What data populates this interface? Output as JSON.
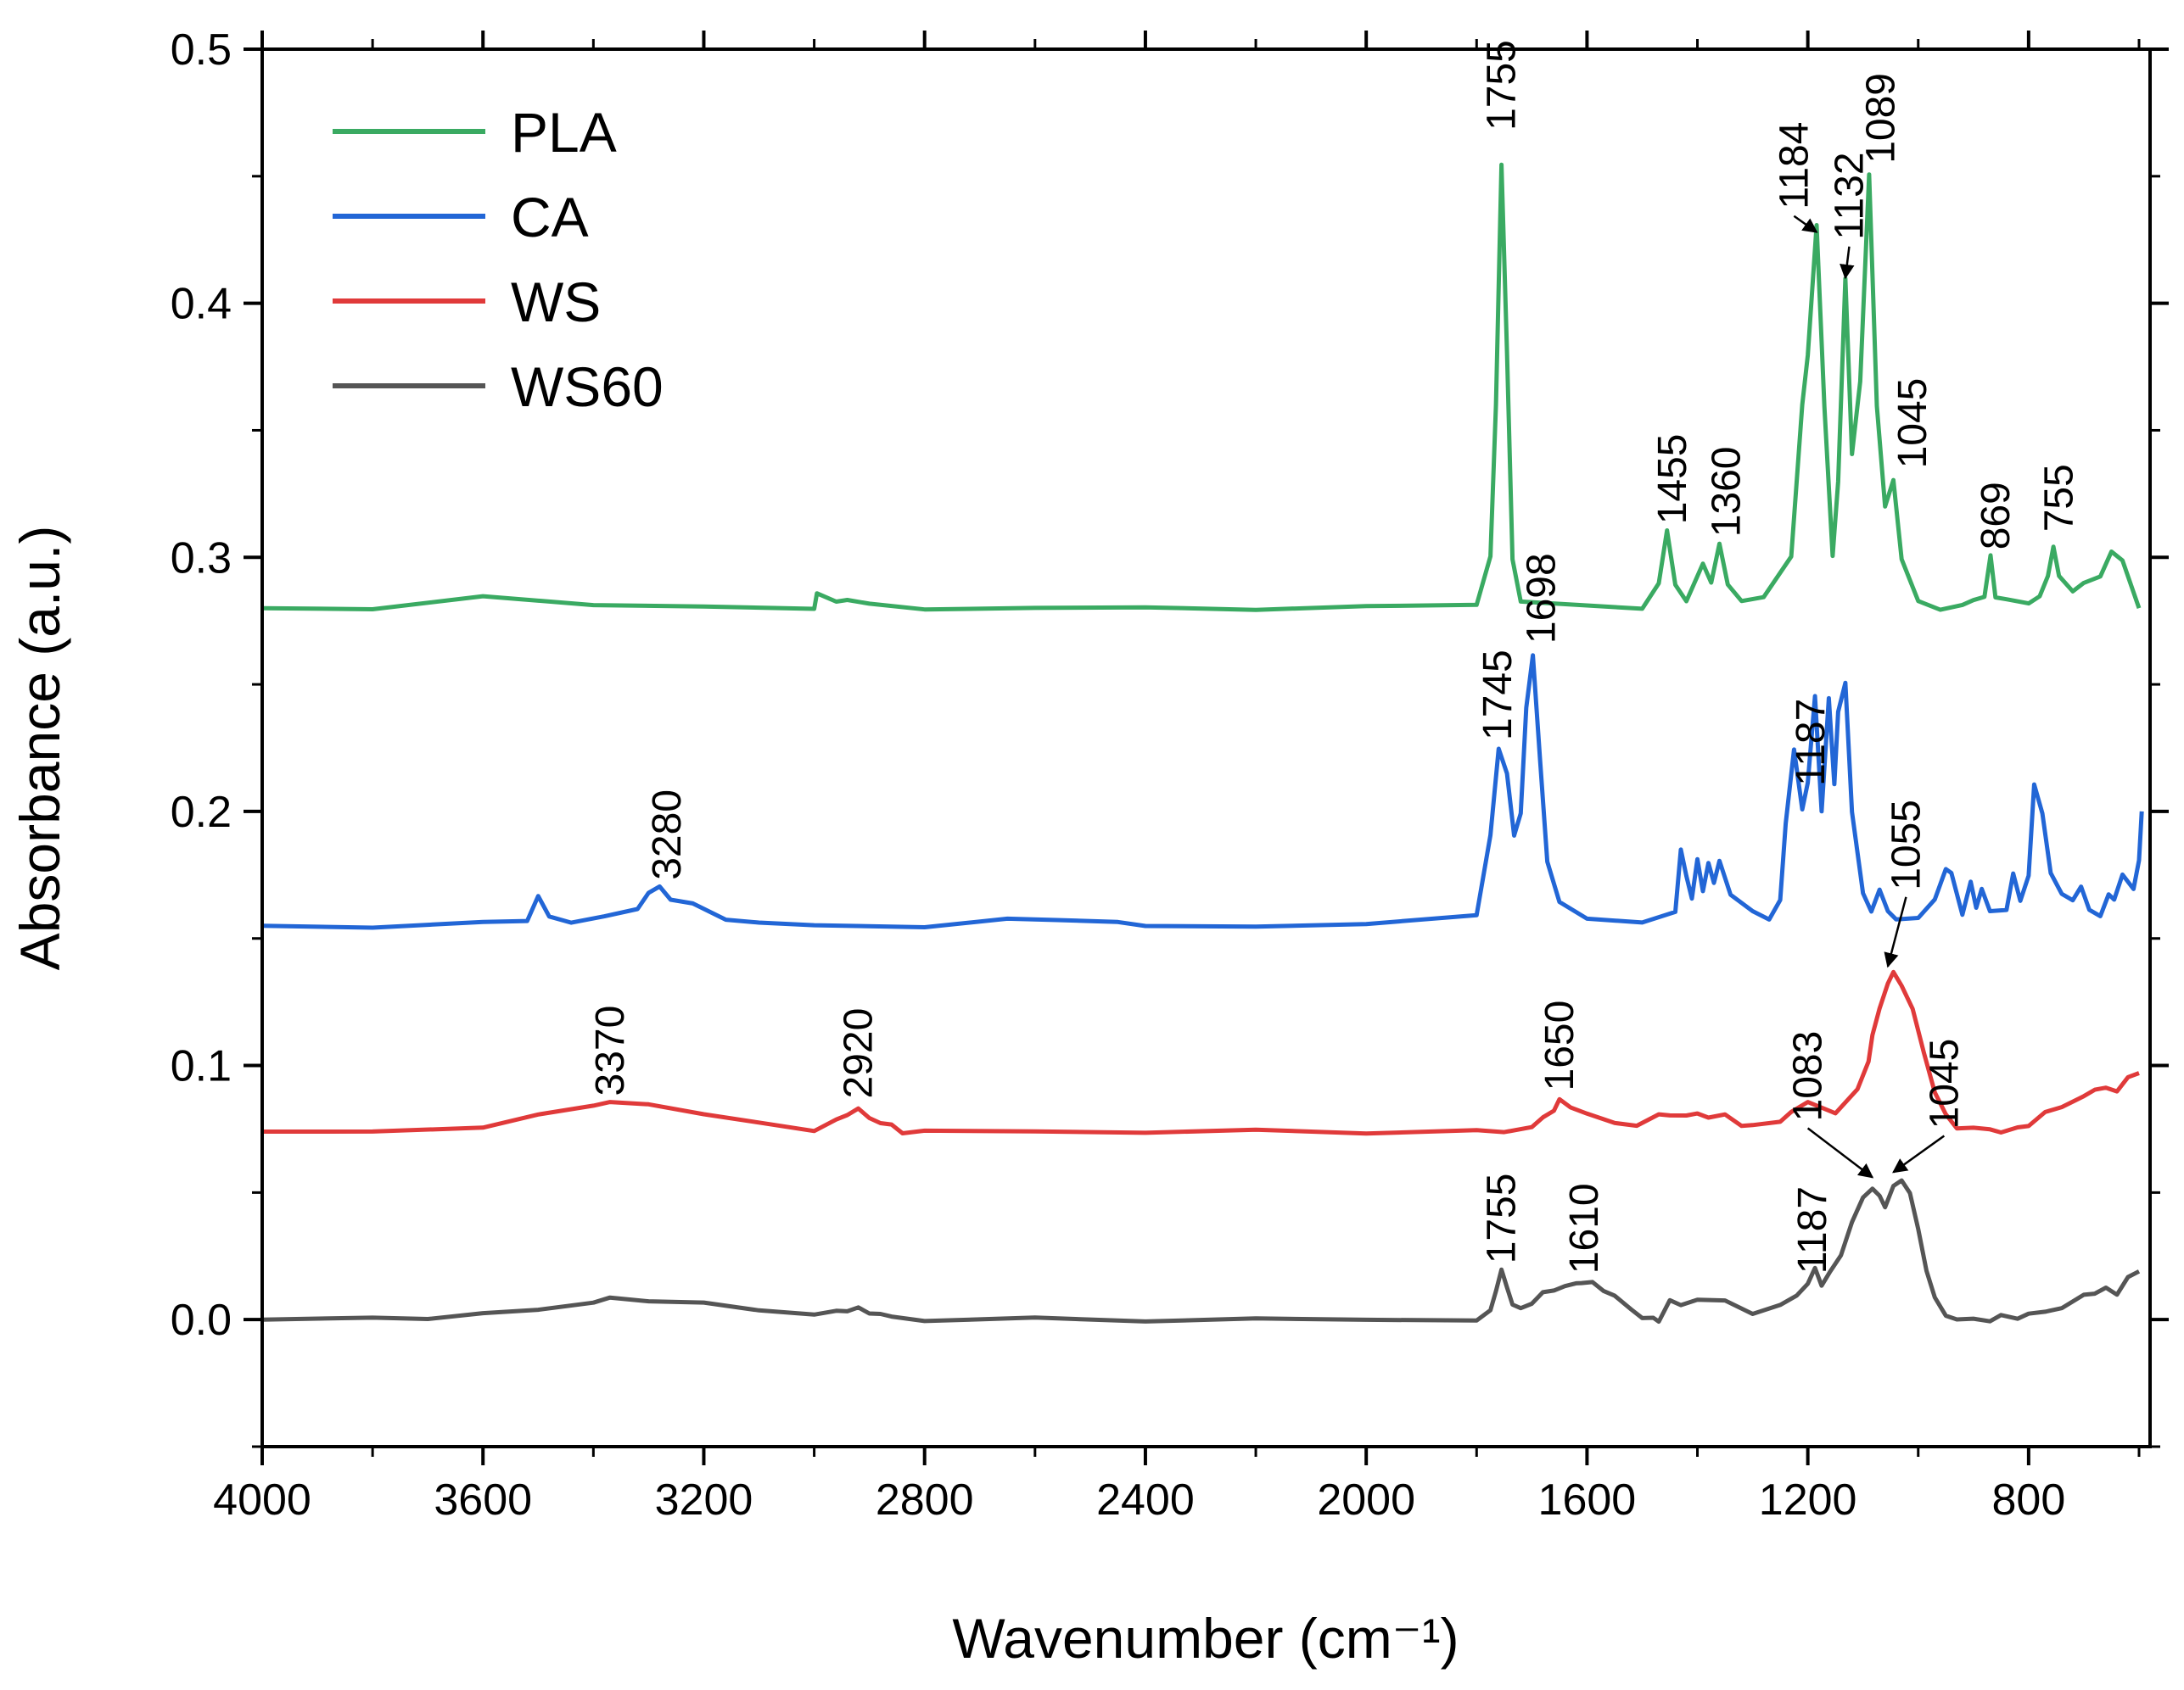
{
  "chart_data": {
    "type": "line",
    "title": "",
    "xlabel": "Wavenumber (cm⁻¹)",
    "ylabel": "Absorbance (a.u.)",
    "xlim": [
      4000,
      580
    ],
    "ylim": [
      -0.05,
      0.5
    ],
    "x_ticks": [
      "4000",
      "3600",
      "3200",
      "2800",
      "2400",
      "2000",
      "1600",
      "1200",
      "800"
    ],
    "y_ticks": [
      "0.0",
      "0.1",
      "0.2",
      "0.3",
      "0.4",
      "0.5"
    ],
    "legend_position": "top-left",
    "series": [
      {
        "name": "PLA",
        "color": "#3aaa62",
        "baseline": 0.28,
        "x": [
          4000,
          3800,
          3600,
          3400,
          3200,
          3000,
          2995,
          2960,
          2940,
          2900,
          2800,
          2600,
          2400,
          2200,
          2000,
          1800,
          1775,
          1765,
          1755,
          1745,
          1735,
          1720,
          1500,
          1470,
          1455,
          1440,
          1420,
          1390,
          1375,
          1360,
          1345,
          1320,
          1280,
          1230,
          1210,
          1200,
          1184,
          1170,
          1155,
          1145,
          1132,
          1120,
          1105,
          1089,
          1075,
          1060,
          1045,
          1030,
          1000,
          960,
          920,
          900,
          880,
          869,
          860,
          840,
          800,
          780,
          765,
          755,
          745,
          720,
          700,
          670,
          650,
          630,
          600
        ],
        "y": [
          0.28,
          0.28,
          0.284,
          0.282,
          0.28,
          0.28,
          0.286,
          0.282,
          0.284,
          0.281,
          0.28,
          0.28,
          0.28,
          0.28,
          0.28,
          0.282,
          0.3,
          0.36,
          0.455,
          0.38,
          0.3,
          0.282,
          0.28,
          0.29,
          0.31,
          0.29,
          0.282,
          0.298,
          0.29,
          0.305,
          0.29,
          0.282,
          0.285,
          0.3,
          0.36,
          0.38,
          0.43,
          0.36,
          0.3,
          0.33,
          0.41,
          0.34,
          0.37,
          0.45,
          0.36,
          0.32,
          0.33,
          0.3,
          0.282,
          0.28,
          0.281,
          0.283,
          0.285,
          0.3,
          0.285,
          0.283,
          0.282,
          0.285,
          0.292,
          0.305,
          0.292,
          0.287,
          0.29,
          0.292,
          0.303,
          0.298,
          0.28
        ]
      },
      {
        "name": "CA",
        "color": "#2266d6",
        "baseline": 0.155,
        "x": [
          4000,
          3800,
          3600,
          3520,
          3500,
          3480,
          3440,
          3380,
          3320,
          3300,
          3280,
          3260,
          3220,
          3160,
          3100,
          3000,
          2800,
          2650,
          2560,
          2450,
          2400,
          2200,
          2000,
          1800,
          1775,
          1760,
          1745,
          1732,
          1720,
          1710,
          1698,
          1685,
          1672,
          1650,
          1600,
          1500,
          1440,
          1430,
          1420,
          1410,
          1400,
          1390,
          1380,
          1370,
          1360,
          1340,
          1300,
          1270,
          1250,
          1240,
          1225,
          1210,
          1200,
          1187,
          1175,
          1162,
          1152,
          1145,
          1132,
          1120,
          1100,
          1085,
          1070,
          1055,
          1040,
          1000,
          970,
          950,
          940,
          920,
          905,
          895,
          885,
          870,
          840,
          828,
          815,
          800,
          790,
          775,
          760,
          740,
          720,
          705,
          690,
          670,
          655,
          645,
          630,
          610,
          600,
          595
        ],
        "y": [
          0.155,
          0.155,
          0.156,
          0.157,
          0.167,
          0.158,
          0.157,
          0.158,
          0.162,
          0.168,
          0.17,
          0.166,
          0.163,
          0.158,
          0.156,
          0.155,
          0.155,
          0.157,
          0.158,
          0.156,
          0.155,
          0.155,
          0.155,
          0.16,
          0.19,
          0.225,
          0.215,
          0.19,
          0.2,
          0.24,
          0.262,
          0.22,
          0.18,
          0.165,
          0.157,
          0.157,
          0.16,
          0.185,
          0.175,
          0.165,
          0.182,
          0.168,
          0.18,
          0.172,
          0.18,
          0.168,
          0.16,
          0.158,
          0.165,
          0.195,
          0.225,
          0.2,
          0.212,
          0.245,
          0.2,
          0.245,
          0.21,
          0.24,
          0.25,
          0.2,
          0.168,
          0.16,
          0.17,
          0.16,
          0.158,
          0.158,
          0.165,
          0.178,
          0.175,
          0.16,
          0.172,
          0.162,
          0.17,
          0.16,
          0.162,
          0.175,
          0.165,
          0.175,
          0.21,
          0.2,
          0.175,
          0.168,
          0.165,
          0.17,
          0.162,
          0.158,
          0.168,
          0.165,
          0.175,
          0.17,
          0.18,
          0.2
        ]
      },
      {
        "name": "WS",
        "color": "#e03a3a",
        "baseline": 0.074,
        "x": [
          4000,
          3800,
          3600,
          3500,
          3400,
          3370,
          3300,
          3200,
          3100,
          3000,
          2960,
          2940,
          2920,
          2900,
          2880,
          2860,
          2840,
          2800,
          2600,
          2400,
          2200,
          2000,
          1800,
          1750,
          1700,
          1680,
          1660,
          1650,
          1630,
          1600,
          1550,
          1510,
          1470,
          1450,
          1420,
          1400,
          1380,
          1350,
          1320,
          1300,
          1250,
          1230,
          1200,
          1150,
          1110,
          1090,
          1083,
          1070,
          1055,
          1045,
          1030,
          1010,
          990,
          970,
          950,
          930,
          900,
          870,
          850,
          820,
          800,
          770,
          740,
          700,
          680,
          660,
          640,
          620,
          600
        ],
        "y": [
          0.074,
          0.074,
          0.076,
          0.08,
          0.085,
          0.085,
          0.085,
          0.081,
          0.077,
          0.075,
          0.078,
          0.081,
          0.083,
          0.079,
          0.078,
          0.076,
          0.074,
          0.074,
          0.074,
          0.074,
          0.074,
          0.074,
          0.074,
          0.074,
          0.076,
          0.079,
          0.083,
          0.086,
          0.084,
          0.081,
          0.077,
          0.077,
          0.08,
          0.081,
          0.08,
          0.081,
          0.08,
          0.08,
          0.077,
          0.076,
          0.078,
          0.082,
          0.085,
          0.082,
          0.09,
          0.102,
          0.112,
          0.122,
          0.133,
          0.136,
          0.132,
          0.122,
          0.105,
          0.09,
          0.08,
          0.076,
          0.075,
          0.075,
          0.074,
          0.075,
          0.077,
          0.081,
          0.084,
          0.088,
          0.09,
          0.092,
          0.089,
          0.096,
          0.097
        ]
      },
      {
        "name": "WS60",
        "color": "#555555",
        "baseline": 0.0,
        "x": [
          4000,
          3800,
          3700,
          3600,
          3500,
          3400,
          3370,
          3300,
          3200,
          3100,
          3000,
          2960,
          2940,
          2920,
          2900,
          2880,
          2860,
          2800,
          2600,
          2400,
          2200,
          2000,
          1800,
          1775,
          1765,
          1755,
          1745,
          1735,
          1720,
          1700,
          1680,
          1660,
          1640,
          1620,
          1610,
          1590,
          1570,
          1550,
          1520,
          1500,
          1480,
          1470,
          1450,
          1430,
          1400,
          1350,
          1300,
          1250,
          1220,
          1200,
          1187,
          1175,
          1160,
          1140,
          1120,
          1100,
          1083,
          1070,
          1060,
          1045,
          1030,
          1015,
          1000,
          985,
          970,
          950,
          930,
          900,
          870,
          850,
          820,
          800,
          770,
          740,
          700,
          680,
          660,
          640,
          620,
          600
        ],
        "y": [
          0.0,
          0.0,
          0.001,
          0.002,
          0.004,
          0.007,
          0.008,
          0.008,
          0.006,
          0.004,
          0.002,
          0.003,
          0.004,
          0.004,
          0.003,
          0.002,
          0.001,
          0.0,
          0.0,
          0.0,
          0.0,
          0.0,
          0.0,
          0.003,
          0.012,
          0.019,
          0.013,
          0.006,
          0.004,
          0.007,
          0.01,
          0.012,
          0.013,
          0.014,
          0.015,
          0.014,
          0.012,
          0.009,
          0.004,
          0.001,
          0.0,
          0.0,
          0.007,
          0.006,
          0.008,
          0.007,
          0.003,
          0.005,
          0.01,
          0.014,
          0.02,
          0.014,
          0.018,
          0.026,
          0.038,
          0.048,
          0.052,
          0.048,
          0.045,
          0.052,
          0.055,
          0.05,
          0.035,
          0.02,
          0.008,
          0.002,
          0.0,
          0.0,
          0.0,
          0.001,
          0.001,
          0.002,
          0.003,
          0.005,
          0.009,
          0.011,
          0.012,
          0.01,
          0.017,
          0.019
        ]
      }
    ],
    "annotations": [
      {
        "text": "1755",
        "series": "PLA",
        "x": 1755,
        "y": 0.468,
        "arrow": false
      },
      {
        "text": "1184",
        "series": "PLA",
        "x": 1225,
        "y": 0.437,
        "arrow": true,
        "target_x": 1184,
        "target_y": 0.428
      },
      {
        "text": "1132",
        "series": "PLA",
        "x": 1125,
        "y": 0.425,
        "arrow": true,
        "target_x": 1132,
        "target_y": 0.41
      },
      {
        "text": "1089",
        "series": "PLA",
        "x": 1068,
        "y": 0.455,
        "arrow": false
      },
      {
        "text": "1045",
        "series": "PLA",
        "x": 1010,
        "y": 0.335,
        "arrow": false
      },
      {
        "text": "1455",
        "series": "PLA",
        "x": 1445,
        "y": 0.313,
        "arrow": false
      },
      {
        "text": "1360",
        "series": "PLA",
        "x": 1348,
        "y": 0.308,
        "arrow": false
      },
      {
        "text": "869",
        "series": "PLA",
        "x": 860,
        "y": 0.303,
        "arrow": false
      },
      {
        "text": "755",
        "series": "PLA",
        "x": 745,
        "y": 0.31,
        "arrow": false
      },
      {
        "text": "1745",
        "series": "CA",
        "x": 1762,
        "y": 0.228,
        "arrow": false
      },
      {
        "text": "1698",
        "series": "CA",
        "x": 1683,
        "y": 0.266,
        "arrow": false
      },
      {
        "text": "1187",
        "series": "CA",
        "x": 1195,
        "y": 0.21,
        "arrow": false
      },
      {
        "text": "1055",
        "series": "CA",
        "x": 1022,
        "y": 0.169,
        "arrow": true,
        "target_x": 1055,
        "target_y": 0.139
      },
      {
        "text": "3280",
        "series": "CA",
        "x": 3267,
        "y": 0.173,
        "arrow": false
      },
      {
        "text": "3370",
        "series": "WS",
        "x": 3370,
        "y": 0.088,
        "arrow": false
      },
      {
        "text": "2920",
        "series": "WS",
        "x": 2920,
        "y": 0.087,
        "arrow": false
      },
      {
        "text": "1650",
        "series": "WS",
        "x": 1650,
        "y": 0.09,
        "arrow": false
      },
      {
        "text": "1083",
        "series": "WS60",
        "x": 1200,
        "y": 0.078,
        "arrow": true,
        "target_x": 1083,
        "target_y": 0.056
      },
      {
        "text": "1045",
        "series": "WS60",
        "x": 953,
        "y": 0.075,
        "arrow": true,
        "target_x": 1045,
        "target_y": 0.058
      },
      {
        "text": "1755",
        "series": "WS60",
        "x": 1755,
        "y": 0.022,
        "arrow": false
      },
      {
        "text": "1610",
        "series": "WS60",
        "x": 1605,
        "y": 0.018,
        "arrow": false
      },
      {
        "text": "1187",
        "series": "WS60",
        "x": 1192,
        "y": 0.018,
        "arrow": false
      }
    ]
  }
}
